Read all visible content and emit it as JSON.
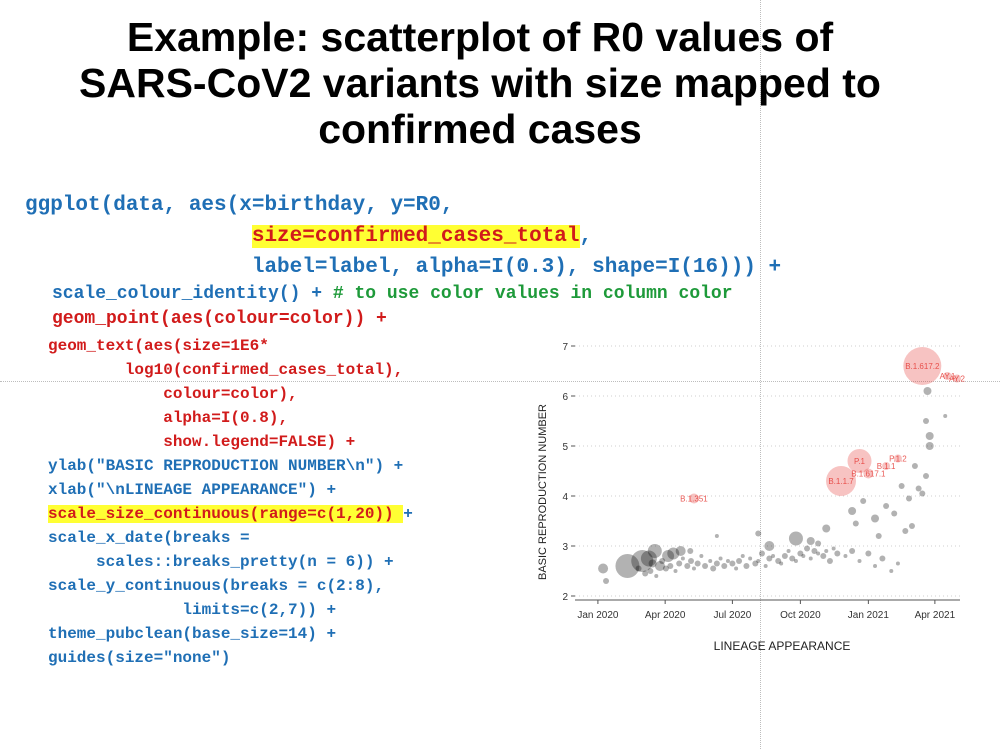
{
  "slide": {
    "title_lines": [
      "Example: scatterplot of R0 values of",
      "SARS-CoV2 variants with size mapped to",
      "confirmed cases"
    ]
  },
  "code": {
    "l1": "ggplot(data, aes(x=birthday, y=R0,",
    "l2_indent": "                  ",
    "l2_hl": "size=confirmed_cases_total",
    "l2_end": ",",
    "l3": "                  label=label, alpha=I(0.3), shape=I(16))) +",
    "l4_a": "scale_colour_identity() + ",
    "l4_b": "# to use color values in column color",
    "l5": "geom_point(aes(colour=color)) +",
    "l6": "geom_text(aes(size=1E6*",
    "l7": "        log10(confirmed_cases_total),",
    "l8": "            colour=color),",
    "l9": "            alpha=I(0.8),",
    "l10": "            show.legend=FALSE) +",
    "l11": "ylab(\"BASIC REPRODUCTION NUMBER\\n\") +",
    "l12": "xlab(\"\\nLINEAGE APPEARANCE\") +",
    "l13_hl": "scale_size_continuous(range=c(1,20)) ",
    "l13_end": "+",
    "l14": "scale_x_date(breaks =",
    "l15": "     scales::breaks_pretty(n = 6)) +",
    "l16": "scale_y_continuous(breaks = c(2:8),",
    "l17": "              limits=c(2,7)) +",
    "l18": "theme_pubclean(base_size=14) +",
    "l19": "guides(size=\"none\")"
  },
  "colors": {
    "code_blue": "#1f6fb5",
    "comment_green": "#1e9a3a",
    "code_red": "#d11b1b",
    "highlight": "#ffff33",
    "variant_red": "#e53935",
    "point_grey": "#000000"
  },
  "chart_data": {
    "type": "scatter",
    "title": "",
    "xlabel": "LINEAGE APPEARANCE",
    "ylabel": "BASIC REPRODUCTION NUMBER",
    "x_scale": "date",
    "xlim": [
      "2019-12-01",
      "2021-05-05"
    ],
    "ylim": [
      2,
      7
    ],
    "x_ticks": [
      {
        "date": "2020-01-01",
        "label": "Jan 2020"
      },
      {
        "date": "2020-04-01",
        "label": "Apr 2020"
      },
      {
        "date": "2020-07-01",
        "label": "Jul 2020"
      },
      {
        "date": "2020-10-01",
        "label": "Oct 2020"
      },
      {
        "date": "2021-01-01",
        "label": "Jan 2021"
      },
      {
        "date": "2021-04-01",
        "label": "Apr 2021"
      }
    ],
    "y_ticks": [
      2,
      3,
      4,
      5,
      6,
      7
    ],
    "grid": "horizontal dotted",
    "legend": "none",
    "labeled_points": [
      {
        "label": "B.1.617.2",
        "date": "2021-03-15",
        "r0": 6.6,
        "size": 19
      },
      {
        "label": "AY.1",
        "date": "2021-04-18",
        "r0": 6.4,
        "size": 4
      },
      {
        "label": "AY.2",
        "date": "2021-05-01",
        "r0": 6.35,
        "size": 4
      },
      {
        "label": "P.1",
        "date": "2020-12-20",
        "r0": 4.7,
        "size": 12
      },
      {
        "label": "P.1.2",
        "date": "2021-02-10",
        "r0": 4.75,
        "size": 4
      },
      {
        "label": "B.1.1",
        "date": "2021-01-25",
        "r0": 4.6,
        "size": 4
      },
      {
        "label": "B.1.617.1",
        "date": "2021-01-01",
        "r0": 4.45,
        "size": 5
      },
      {
        "label": "B.1.1.7",
        "date": "2020-11-25",
        "r0": 4.3,
        "size": 15
      },
      {
        "label": "B.1.351",
        "date": "2020-05-10",
        "r0": 3.95,
        "size": 5
      }
    ],
    "unlabeled_points": [
      [
        "2020-01-08",
        2.55,
        5
      ],
      [
        "2020-01-12",
        2.3,
        3
      ],
      [
        "2020-02-10",
        2.6,
        12
      ],
      [
        "2020-03-01",
        2.7,
        11
      ],
      [
        "2020-03-10",
        2.75,
        8
      ],
      [
        "2020-03-18",
        2.9,
        7
      ],
      [
        "2020-03-25",
        2.6,
        5
      ],
      [
        "2020-04-05",
        2.8,
        6
      ],
      [
        "2020-04-12",
        2.85,
        6
      ],
      [
        "2020-04-22",
        2.9,
        5
      ],
      [
        "2020-02-25",
        2.55,
        3
      ],
      [
        "2020-03-05",
        2.45,
        3
      ],
      [
        "2020-03-12",
        2.5,
        3
      ],
      [
        "2020-03-15",
        2.65,
        4
      ],
      [
        "2020-03-20",
        2.4,
        2
      ],
      [
        "2020-03-28",
        2.7,
        3
      ],
      [
        "2020-04-02",
        2.55,
        3
      ],
      [
        "2020-04-08",
        2.6,
        3
      ],
      [
        "2020-04-15",
        2.5,
        2
      ],
      [
        "2020-04-20",
        2.65,
        3
      ],
      [
        "2020-04-25",
        2.75,
        2
      ],
      [
        "2020-05-01",
        2.6,
        3
      ],
      [
        "2020-05-06",
        2.7,
        3
      ],
      [
        "2020-05-10",
        2.55,
        2
      ],
      [
        "2020-05-15",
        2.65,
        3
      ],
      [
        "2020-05-20",
        2.8,
        2
      ],
      [
        "2020-05-25",
        2.6,
        3
      ],
      [
        "2020-06-01",
        2.7,
        2
      ],
      [
        "2020-06-05",
        2.55,
        3
      ],
      [
        "2020-06-10",
        2.65,
        3
      ],
      [
        "2020-06-15",
        2.75,
        2
      ],
      [
        "2020-06-20",
        2.6,
        3
      ],
      [
        "2020-06-25",
        2.7,
        2
      ],
      [
        "2020-07-01",
        2.65,
        3
      ],
      [
        "2020-07-06",
        2.55,
        2
      ],
      [
        "2020-07-10",
        2.7,
        3
      ],
      [
        "2020-07-15",
        2.8,
        2
      ],
      [
        "2020-07-20",
        2.6,
        3
      ],
      [
        "2020-07-25",
        2.75,
        2
      ],
      [
        "2020-08-01",
        2.65,
        3
      ],
      [
        "2020-08-05",
        2.7,
        2
      ],
      [
        "2020-08-10",
        2.85,
        3
      ],
      [
        "2020-08-15",
        2.6,
        2
      ],
      [
        "2020-08-20",
        2.75,
        3
      ],
      [
        "2020-08-25",
        2.8,
        2
      ],
      [
        "2020-09-01",
        2.7,
        3
      ],
      [
        "2020-09-05",
        2.65,
        2
      ],
      [
        "2020-09-10",
        2.8,
        3
      ],
      [
        "2020-09-15",
        2.9,
        2
      ],
      [
        "2020-09-20",
        2.75,
        3
      ],
      [
        "2020-09-25",
        2.7,
        2
      ],
      [
        "2020-10-01",
        2.85,
        3
      ],
      [
        "2020-10-05",
        2.8,
        2
      ],
      [
        "2020-10-10",
        2.95,
        3
      ],
      [
        "2020-10-15",
        2.75,
        2
      ],
      [
        "2020-10-20",
        2.9,
        3
      ],
      [
        "2020-10-25",
        2.85,
        2
      ],
      [
        "2020-11-01",
        2.8,
        3
      ],
      [
        "2020-11-05",
        2.9,
        2
      ],
      [
        "2020-11-10",
        2.7,
        3
      ],
      [
        "2020-11-15",
        2.95,
        2
      ],
      [
        "2020-11-20",
        2.85,
        3
      ],
      [
        "2020-12-01",
        2.8,
        2
      ],
      [
        "2020-12-10",
        2.9,
        3
      ],
      [
        "2020-12-20",
        2.7,
        2
      ],
      [
        "2021-01-01",
        2.85,
        3
      ],
      [
        "2021-01-10",
        2.6,
        2
      ],
      [
        "2021-01-20",
        2.75,
        3
      ],
      [
        "2021-02-01",
        2.5,
        2
      ],
      [
        "2021-02-10",
        2.65,
        2
      ],
      [
        "2020-08-20",
        3.0,
        5
      ],
      [
        "2020-09-25",
        3.15,
        7
      ],
      [
        "2020-11-05",
        3.35,
        4
      ],
      [
        "2020-12-10",
        3.7,
        4
      ],
      [
        "2020-12-25",
        3.9,
        3
      ],
      [
        "2021-01-10",
        3.55,
        4
      ],
      [
        "2021-01-25",
        3.8,
        3
      ],
      [
        "2021-02-05",
        3.65,
        3
      ],
      [
        "2021-02-15",
        4.2,
        3
      ],
      [
        "2021-02-25",
        3.95,
        3
      ],
      [
        "2021-03-05",
        4.6,
        3
      ],
      [
        "2021-03-10",
        4.15,
        3
      ],
      [
        "2021-03-15",
        4.05,
        3
      ],
      [
        "2021-03-20",
        4.4,
        3
      ],
      [
        "2021-03-25",
        5.2,
        4
      ],
      [
        "2021-03-25",
        5.0,
        4
      ],
      [
        "2021-03-20",
        5.5,
        3
      ],
      [
        "2021-03-22",
        6.1,
        4
      ],
      [
        "2021-04-15",
        5.6,
        2
      ],
      [
        "2021-02-20",
        3.3,
        3
      ],
      [
        "2021-03-01",
        3.4,
        3
      ],
      [
        "2021-01-15",
        3.2,
        3
      ],
      [
        "2020-10-15",
        3.1,
        4
      ],
      [
        "2020-06-10",
        3.2,
        2
      ],
      [
        "2020-08-05",
        3.25,
        3
      ],
      [
        "2020-05-05",
        2.9,
        3
      ],
      [
        "2020-10-25",
        3.05,
        3
      ],
      [
        "2020-12-15",
        3.45,
        3
      ]
    ]
  }
}
